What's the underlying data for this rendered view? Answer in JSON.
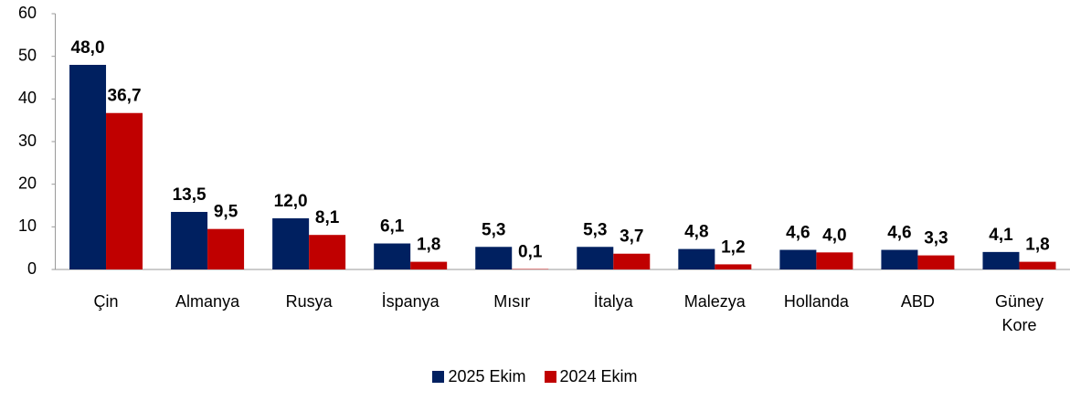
{
  "chart_data": {
    "type": "bar",
    "categories": [
      "Çin",
      "Almanya",
      "Rusya",
      "İspanya",
      "Mısır",
      "İtalya",
      "Malezya",
      "Hollanda",
      "ABD",
      "Güney Kore"
    ],
    "series": [
      {
        "name": "2025 Ekim",
        "color": "#002060",
        "values": [
          48.0,
          13.5,
          12.0,
          6.1,
          5.3,
          5.3,
          4.8,
          4.6,
          4.6,
          4.1
        ],
        "value_labels": [
          "48,0",
          "13,5",
          "12,0",
          "6,1",
          "5,3",
          "5,3",
          "4,8",
          "4,6",
          "4,6",
          "4,1"
        ]
      },
      {
        "name": "2024 Ekim",
        "color": "#C00000",
        "values": [
          36.7,
          9.5,
          8.1,
          1.8,
          0.1,
          3.7,
          1.2,
          4.0,
          3.3,
          1.8
        ],
        "value_labels": [
          "36,7",
          "9,5",
          "8,1",
          "1,8",
          "0,1",
          "3,7",
          "1,2",
          "4,0",
          "3,3",
          "1,8"
        ]
      }
    ],
    "ylim": [
      0,
      60
    ],
    "yticks": [
      0,
      10,
      20,
      30,
      40,
      50,
      60
    ],
    "grid": false,
    "legend": "bottom"
  }
}
